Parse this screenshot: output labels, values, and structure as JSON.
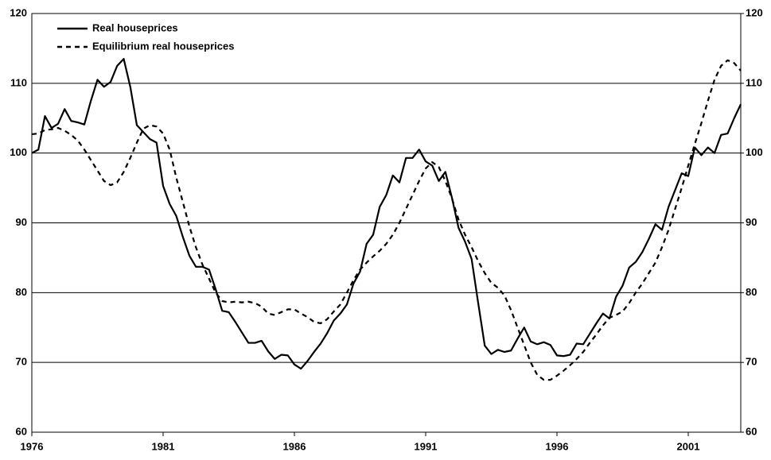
{
  "chart_data": {
    "type": "line",
    "x": [
      1976,
      1976.25,
      1976.5,
      1976.75,
      1977,
      1977.25,
      1977.5,
      1977.75,
      1978,
      1978.25,
      1978.5,
      1978.75,
      1979,
      1979.25,
      1979.5,
      1979.75,
      1980,
      1980.25,
      1980.5,
      1980.75,
      1981,
      1981.25,
      1981.5,
      1981.75,
      1982,
      1982.25,
      1982.5,
      1982.75,
      1983,
      1983.25,
      1983.5,
      1983.75,
      1984,
      1984.25,
      1984.5,
      1984.75,
      1985,
      1985.25,
      1985.5,
      1985.75,
      1986,
      1986.25,
      1986.5,
      1986.75,
      1987,
      1987.25,
      1987.5,
      1987.75,
      1988,
      1988.25,
      1988.5,
      1988.75,
      1989,
      1989.25,
      1989.5,
      1989.75,
      1990,
      1990.25,
      1990.5,
      1990.75,
      1991,
      1991.25,
      1991.5,
      1991.75,
      1992,
      1992.25,
      1992.5,
      1992.75,
      1993,
      1993.25,
      1993.5,
      1993.75,
      1994,
      1994.25,
      1994.5,
      1994.75,
      1995,
      1995.25,
      1995.5,
      1995.75,
      1996,
      1996.25,
      1996.5,
      1996.75,
      1997,
      1997.25,
      1997.5,
      1997.75,
      1998,
      1998.25,
      1998.5,
      1998.75,
      1999,
      1999.25,
      1999.5,
      1999.75,
      2000,
      2000.25,
      2000.5,
      2000.75,
      2001,
      2001.25,
      2001.5,
      2001.75,
      2002,
      2002.25,
      2002.5,
      2002.75,
      2003
    ],
    "series": [
      {
        "name": "Real houseprices",
        "color": "#000000",
        "dash": false,
        "values": [
          100,
          100.5,
          105.3,
          103.6,
          104.2,
          106.3,
          104.6,
          104.4,
          104.1,
          107.5,
          110.5,
          109.5,
          110.2,
          112.5,
          113.5,
          109.5,
          104,
          103,
          102,
          101.5,
          95.3,
          92.7,
          91,
          88,
          85.3,
          83.7,
          83.7,
          83.3,
          80.5,
          77.4,
          77.2,
          75.8,
          74.3,
          72.8,
          72.8,
          73.1,
          71.6,
          70.5,
          71.1,
          71,
          69.7,
          69.1,
          70.2,
          71.5,
          72.7,
          74.2,
          76,
          77,
          78.3,
          81.3,
          83,
          87,
          88.3,
          92.3,
          94,
          96.8,
          95.8,
          99.3,
          99.3,
          100.5,
          98.8,
          98.2,
          96,
          97.3,
          93.6,
          89.3,
          87.3,
          84.8,
          78.5,
          72.4,
          71.2,
          71.8,
          71.5,
          71.7,
          73.4,
          75,
          73,
          72.6,
          72.9,
          72.5,
          71,
          70.9,
          71.1,
          72.7,
          72.6,
          74.1,
          75.6,
          77,
          76.3,
          79.4,
          81,
          83.6,
          84.4,
          85.8,
          87.7,
          89.8,
          89,
          92.3,
          94.7,
          97.1,
          96.7,
          100.8,
          99.7,
          100.8,
          100,
          102.6,
          102.8,
          105,
          107
        ]
      },
      {
        "name": "Equilibrium real houseprices",
        "color": "#000000",
        "dash": true,
        "values": [
          102.7,
          102.8,
          103.3,
          103.4,
          103.6,
          103.2,
          102.6,
          101.8,
          100.5,
          99,
          97.5,
          96,
          95.4,
          95.8,
          97.3,
          99.3,
          101.5,
          103.5,
          104,
          103.8,
          102.8,
          100.5,
          96.5,
          93,
          89.5,
          86.5,
          84,
          82,
          80,
          78.8,
          78.6,
          78.7,
          78.6,
          78.7,
          78.5,
          78,
          77,
          76.8,
          77.2,
          77.6,
          77.6,
          77,
          76.5,
          75.8,
          75.6,
          76.2,
          77.3,
          78.3,
          80,
          81.8,
          83.3,
          84.3,
          85.2,
          86,
          87,
          88.3,
          90,
          92,
          94,
          96,
          97.8,
          98.7,
          98,
          96,
          93.5,
          90.5,
          88.3,
          86.5,
          84.5,
          82.8,
          81.4,
          80.7,
          79.6,
          77.5,
          75,
          72.5,
          70,
          68.2,
          67.5,
          67.5,
          68.1,
          68.8,
          69.6,
          70.5,
          71.5,
          72.8,
          74,
          75.3,
          76.4,
          76.8,
          77.3,
          78.5,
          80,
          81.3,
          82.8,
          84.3,
          86.5,
          89,
          92,
          95,
          98.2,
          101.3,
          104.3,
          107.5,
          110.5,
          112.5,
          113.3,
          112.9,
          111.8
        ]
      }
    ],
    "xlim": [
      1976,
      2003
    ],
    "xticks": [
      1976,
      1981,
      1986,
      1991,
      1996,
      2001
    ],
    "ylim": [
      60,
      120
    ],
    "yticks": [
      60,
      70,
      80,
      90,
      100,
      110,
      120
    ],
    "y2lim": [
      60,
      120
    ],
    "y2ticks": [
      60,
      70,
      80,
      90,
      100,
      110,
      120
    ],
    "grid": true,
    "legend": "upper left"
  }
}
